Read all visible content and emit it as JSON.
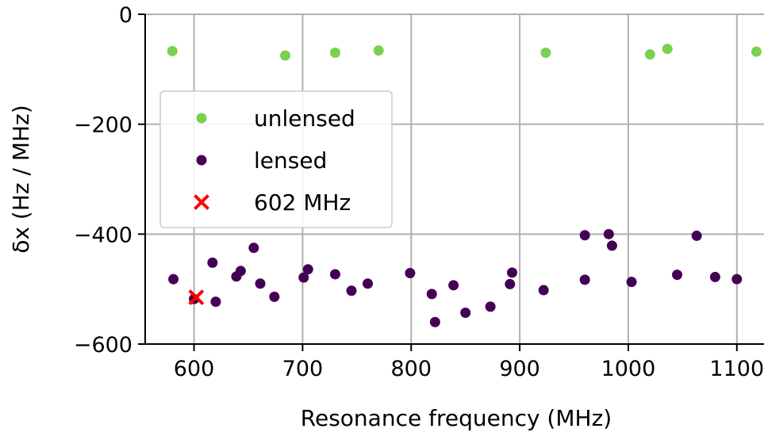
{
  "chart_data": {
    "type": "scatter",
    "xlabel": "Resonance frequency (MHz)",
    "ylabel": "δx (Hz / MHz)",
    "xlim": [
      555,
      1125
    ],
    "ylim": [
      -600,
      0
    ],
    "xticks": [
      600,
      700,
      800,
      900,
      1000,
      1100
    ],
    "yticks": [
      0,
      -200,
      -400,
      -600
    ],
    "xtick_labels": [
      "600",
      "700",
      "800",
      "900",
      "1000",
      "1100"
    ],
    "ytick_labels": [
      "0",
      "−200",
      "−400",
      "−600"
    ],
    "grid": true,
    "legend_position": "center-left",
    "series": [
      {
        "name": "unlensed",
        "marker": "circle",
        "color": "#7ad151",
        "points": [
          {
            "x": 580,
            "y": -67
          },
          {
            "x": 684,
            "y": -75
          },
          {
            "x": 730,
            "y": -70
          },
          {
            "x": 770,
            "y": -66
          },
          {
            "x": 924,
            "y": -70
          },
          {
            "x": 1020,
            "y": -73
          },
          {
            "x": 1036,
            "y": -63
          },
          {
            "x": 1118,
            "y": -68
          }
        ]
      },
      {
        "name": "lensed",
        "marker": "circle",
        "color": "#440154",
        "points": [
          {
            "x": 581,
            "y": -482
          },
          {
            "x": 600,
            "y": -518
          },
          {
            "x": 617,
            "y": -452
          },
          {
            "x": 620,
            "y": -523
          },
          {
            "x": 639,
            "y": -477
          },
          {
            "x": 643,
            "y": -467
          },
          {
            "x": 655,
            "y": -425
          },
          {
            "x": 661,
            "y": -490
          },
          {
            "x": 674,
            "y": -514
          },
          {
            "x": 701,
            "y": -479
          },
          {
            "x": 705,
            "y": -464
          },
          {
            "x": 730,
            "y": -473
          },
          {
            "x": 745,
            "y": -503
          },
          {
            "x": 760,
            "y": -490
          },
          {
            "x": 799,
            "y": -471
          },
          {
            "x": 819,
            "y": -509
          },
          {
            "x": 822,
            "y": -560
          },
          {
            "x": 839,
            "y": -493
          },
          {
            "x": 850,
            "y": -543
          },
          {
            "x": 873,
            "y": -532
          },
          {
            "x": 891,
            "y": -491
          },
          {
            "x": 893,
            "y": -470
          },
          {
            "x": 922,
            "y": -502
          },
          {
            "x": 960,
            "y": -402
          },
          {
            "x": 960,
            "y": -483
          },
          {
            "x": 982,
            "y": -400
          },
          {
            "x": 985,
            "y": -421
          },
          {
            "x": 1003,
            "y": -487
          },
          {
            "x": 1045,
            "y": -474
          },
          {
            "x": 1063,
            "y": -403
          },
          {
            "x": 1080,
            "y": -478
          },
          {
            "x": 1100,
            "y": -482
          }
        ]
      },
      {
        "name": "602 MHz",
        "marker": "x",
        "color": "#ff0000",
        "points": [
          {
            "x": 602,
            "y": -515
          }
        ]
      }
    ]
  }
}
